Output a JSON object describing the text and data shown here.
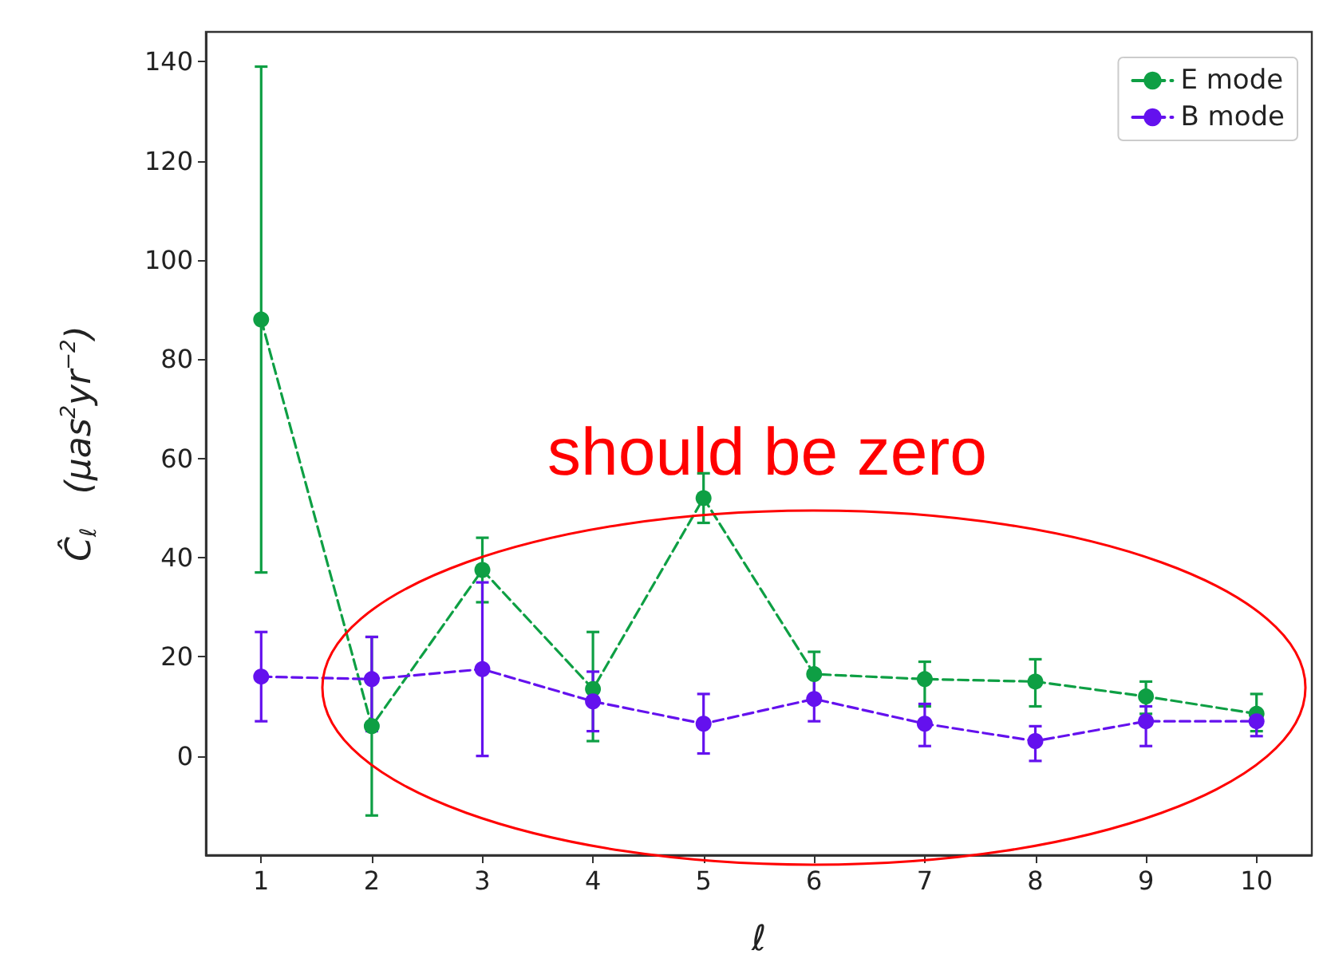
{
  "chart_data": {
    "type": "line",
    "xlabel": "ℓ",
    "ylabel": "Ĉ$_{ℓ}$   (μas$^{2}$yr$^{−2}$)",
    "x": [
      1,
      2,
      3,
      4,
      5,
      6,
      7,
      8,
      9,
      10
    ],
    "series": [
      {
        "name": "E mode",
        "color": "#0e9f44",
        "values": [
          88,
          6,
          37.5,
          13.5,
          52,
          16.5,
          15.5,
          15,
          12,
          8.5
        ],
        "errors": [
          [
            37,
            139
          ],
          [
            -12,
            24
          ],
          [
            31,
            44
          ],
          [
            3,
            25
          ],
          [
            47,
            57
          ],
          [
            11,
            21
          ],
          [
            10,
            19
          ],
          [
            10,
            19.5
          ],
          [
            8.5,
            15
          ],
          [
            5,
            12.5
          ]
        ]
      },
      {
        "name": "B mode",
        "color": "#6411ee",
        "values": [
          16,
          15.5,
          17.5,
          11,
          6.5,
          11.5,
          6.5,
          3,
          7,
          7
        ],
        "errors": [
          [
            7,
            25
          ],
          [
            5,
            24
          ],
          [
            0,
            35
          ],
          [
            5,
            17
          ],
          [
            0.5,
            12.5
          ],
          [
            7,
            16
          ],
          [
            2,
            10.5
          ],
          [
            -1,
            6
          ],
          [
            2,
            10
          ],
          [
            4,
            9
          ]
        ]
      }
    ],
    "xlim": [
      0.5,
      10.5
    ],
    "xticks": [
      1,
      2,
      3,
      4,
      5,
      6,
      7,
      8,
      9,
      10
    ],
    "ylim": [
      -20,
      146
    ],
    "yticks": [
      0,
      20,
      40,
      60,
      80,
      100,
      120,
      140
    ],
    "grid": false,
    "legend": "top right",
    "marker": "circle",
    "line_style": "dashed",
    "annotations": [
      "should be zero"
    ]
  }
}
